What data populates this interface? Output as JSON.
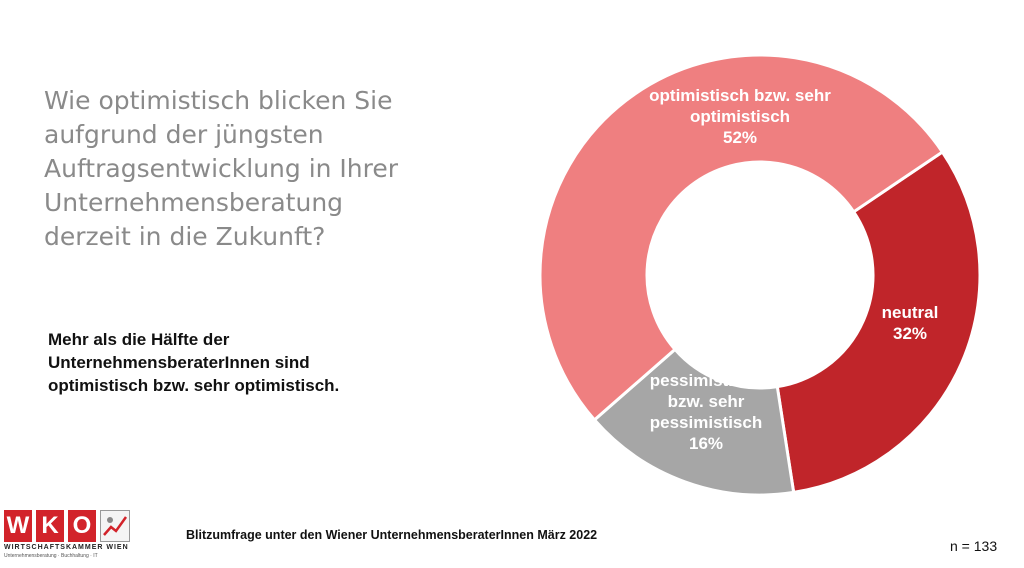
{
  "question": {
    "lines": [
      "Wie optimistisch blicken Sie",
      "aufgrund der jüngsten",
      "Auftragsentwicklung in Ihrer",
      "Unternehmensberatung",
      "derzeit in die Zukunft?"
    ]
  },
  "summary": {
    "lines": [
      "Mehr als die Hälfte der",
      "UnternehmensberaterInnen sind",
      "optimistisch bzw. sehr optimistisch."
    ]
  },
  "chart_data": {
    "type": "pie",
    "variant": "donut",
    "title": "",
    "start_angle_deg": -34,
    "slices": [
      {
        "label_lines": [
          "neutral"
        ],
        "value": 32,
        "value_label": "32%",
        "color": "#c0252a"
      },
      {
        "label_lines": [
          "pessimistisch",
          "bzw. sehr",
          "pessimistisch"
        ],
        "value": 16,
        "value_label": "16%",
        "color": "#a6a6a6"
      },
      {
        "label_lines": [
          "optimistisch bzw. sehr",
          "optimistisch"
        ],
        "value": 52,
        "value_label": "52%",
        "color": "#ef7f80"
      }
    ]
  },
  "footer": {
    "source": "Blitzumfrage unter den Wiener UnternehmensberaterInnen März 2022",
    "n": "n = 133"
  },
  "logo": {
    "letters": [
      "W",
      "K",
      "O"
    ],
    "org": "WIRTSCHAFTSKAMMER WIEN",
    "dept": "Unternehmensberatung · Buchhaltung · IT",
    "colors": {
      "red": "#d2232a"
    }
  }
}
